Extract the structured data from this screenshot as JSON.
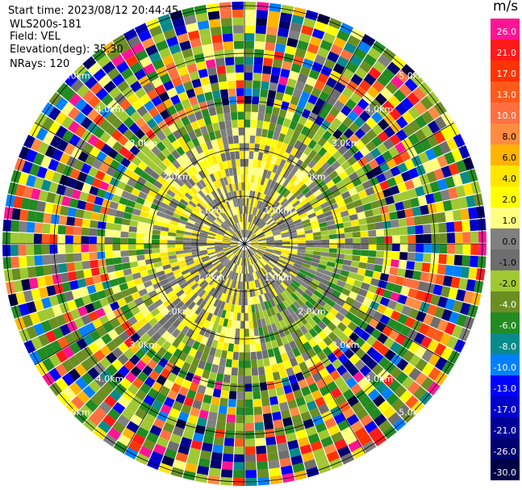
{
  "header": {
    "start_time": "Start time: 2023/08/12 20:44:45",
    "instrument": "WLS200s-181",
    "field": "Field: VEL",
    "elevation": "Elevation(deg): 35.30",
    "nrays": "NRays: 120"
  },
  "colorbar": {
    "unit": "m/s",
    "levels": [
      {
        "label": "26.0",
        "color": "#ff1493"
      },
      {
        "label": "21.0",
        "color": "#ff1a1a"
      },
      {
        "label": "17.0",
        "color": "#ff3300"
      },
      {
        "label": "13.0",
        "color": "#ff5a1a"
      },
      {
        "label": "10.0",
        "color": "#ff7040"
      },
      {
        "label": "8.0",
        "color": "#ff8c40"
      },
      {
        "label": "6.0",
        "color": "#ffb400"
      },
      {
        "label": "4.0",
        "color": "#ffe600"
      },
      {
        "label": "2.0",
        "color": "#ffff00"
      },
      {
        "label": "1.0",
        "color": "#ffff80"
      },
      {
        "label": "0.0",
        "color": "#808080"
      },
      {
        "label": "-1.0",
        "color": "#6e6e6e"
      },
      {
        "label": "-2.0",
        "color": "#a0c832"
      },
      {
        "label": "-4.0",
        "color": "#6b8e23"
      },
      {
        "label": "-6.0",
        "color": "#228b22"
      },
      {
        "label": "-8.0",
        "color": "#0a8a8a"
      },
      {
        "label": "-10.0",
        "color": "#0080ff"
      },
      {
        "label": "-13.0",
        "color": "#0000ff"
      },
      {
        "label": "-17.0",
        "color": "#0000cd"
      },
      {
        "label": "-21.0",
        "color": "#000096"
      },
      {
        "label": "-26.0",
        "color": "#00006e"
      },
      {
        "label": "-30.0",
        "color": "#000046"
      }
    ]
  },
  "chart_data": {
    "type": "heatmap",
    "projection": "polar-ppi",
    "field": "VEL",
    "nrays": 120,
    "elevation_deg": 35.3,
    "range_rings_km": [
      1.0,
      2.0,
      3.0,
      4.0,
      5.0
    ],
    "ring_labels": [
      "1.0km",
      "2.0km",
      "3.0km",
      "4.0km",
      "5.0km"
    ],
    "grid": true
  }
}
